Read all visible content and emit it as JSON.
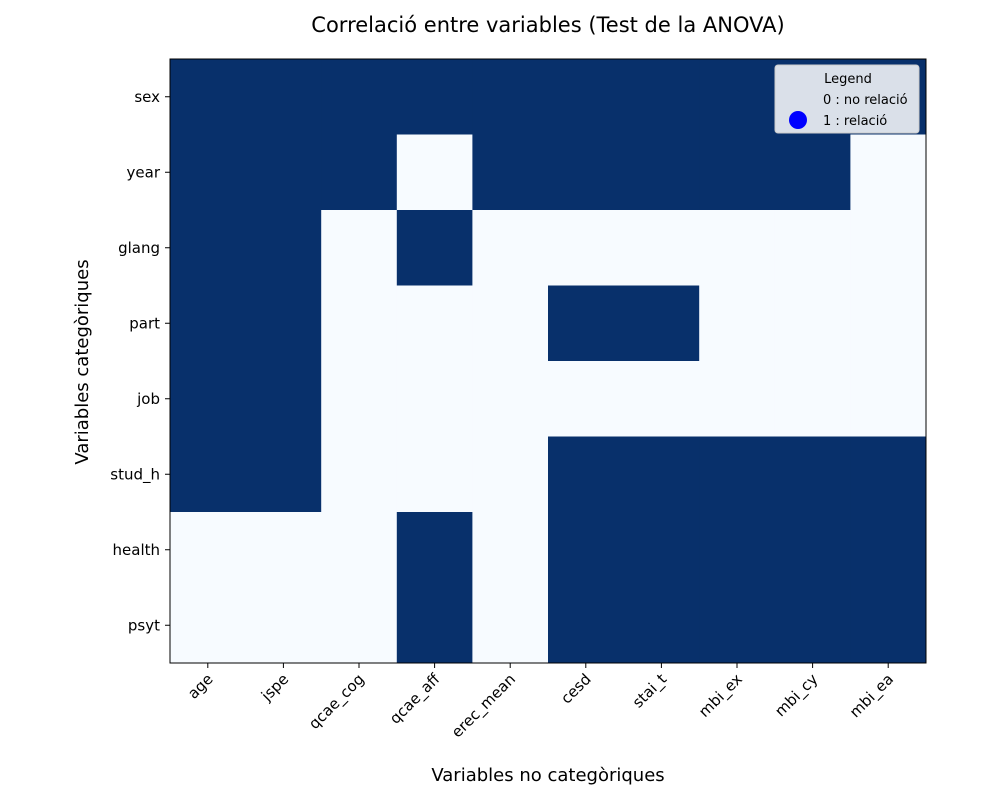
{
  "chart_data": {
    "type": "heatmap",
    "title": "Correlació entre variables (Test de la ANOVA)",
    "xlabel": "Variables no categòriques",
    "ylabel": "Variables categòriques",
    "x_categories": [
      "age",
      "jspe",
      "qcae_cog",
      "qcae_aff",
      "erec_mean",
      "cesd",
      "stai_t",
      "mbi_ex",
      "mbi_cy",
      "mbi_ea"
    ],
    "y_categories": [
      "sex",
      "year",
      "glang",
      "part",
      "job",
      "stud_h",
      "health",
      "psyt"
    ],
    "matrix": [
      [
        1,
        1,
        1,
        1,
        1,
        1,
        1,
        1,
        1,
        1
      ],
      [
        1,
        1,
        1,
        0,
        1,
        1,
        1,
        1,
        1,
        0
      ],
      [
        1,
        1,
        0,
        1,
        0,
        0,
        0,
        0,
        0,
        0
      ],
      [
        1,
        1,
        0,
        0,
        0,
        1,
        1,
        0,
        0,
        0
      ],
      [
        1,
        1,
        0,
        0,
        0,
        0,
        0,
        0,
        0,
        0
      ],
      [
        1,
        1,
        0,
        0,
        0,
        1,
        1,
        1,
        1,
        1
      ],
      [
        0,
        0,
        0,
        1,
        0,
        1,
        1,
        1,
        1,
        1
      ],
      [
        0,
        0,
        0,
        1,
        0,
        1,
        1,
        1,
        1,
        1
      ]
    ],
    "colors": {
      "relation": "#08306b",
      "no_relation": "#f7fbff",
      "legend_marker": "#0000ff"
    },
    "legend": {
      "title": "Legend",
      "entries": [
        "0 : no relació",
        "1 : relació"
      ],
      "placement": "top-right"
    }
  }
}
